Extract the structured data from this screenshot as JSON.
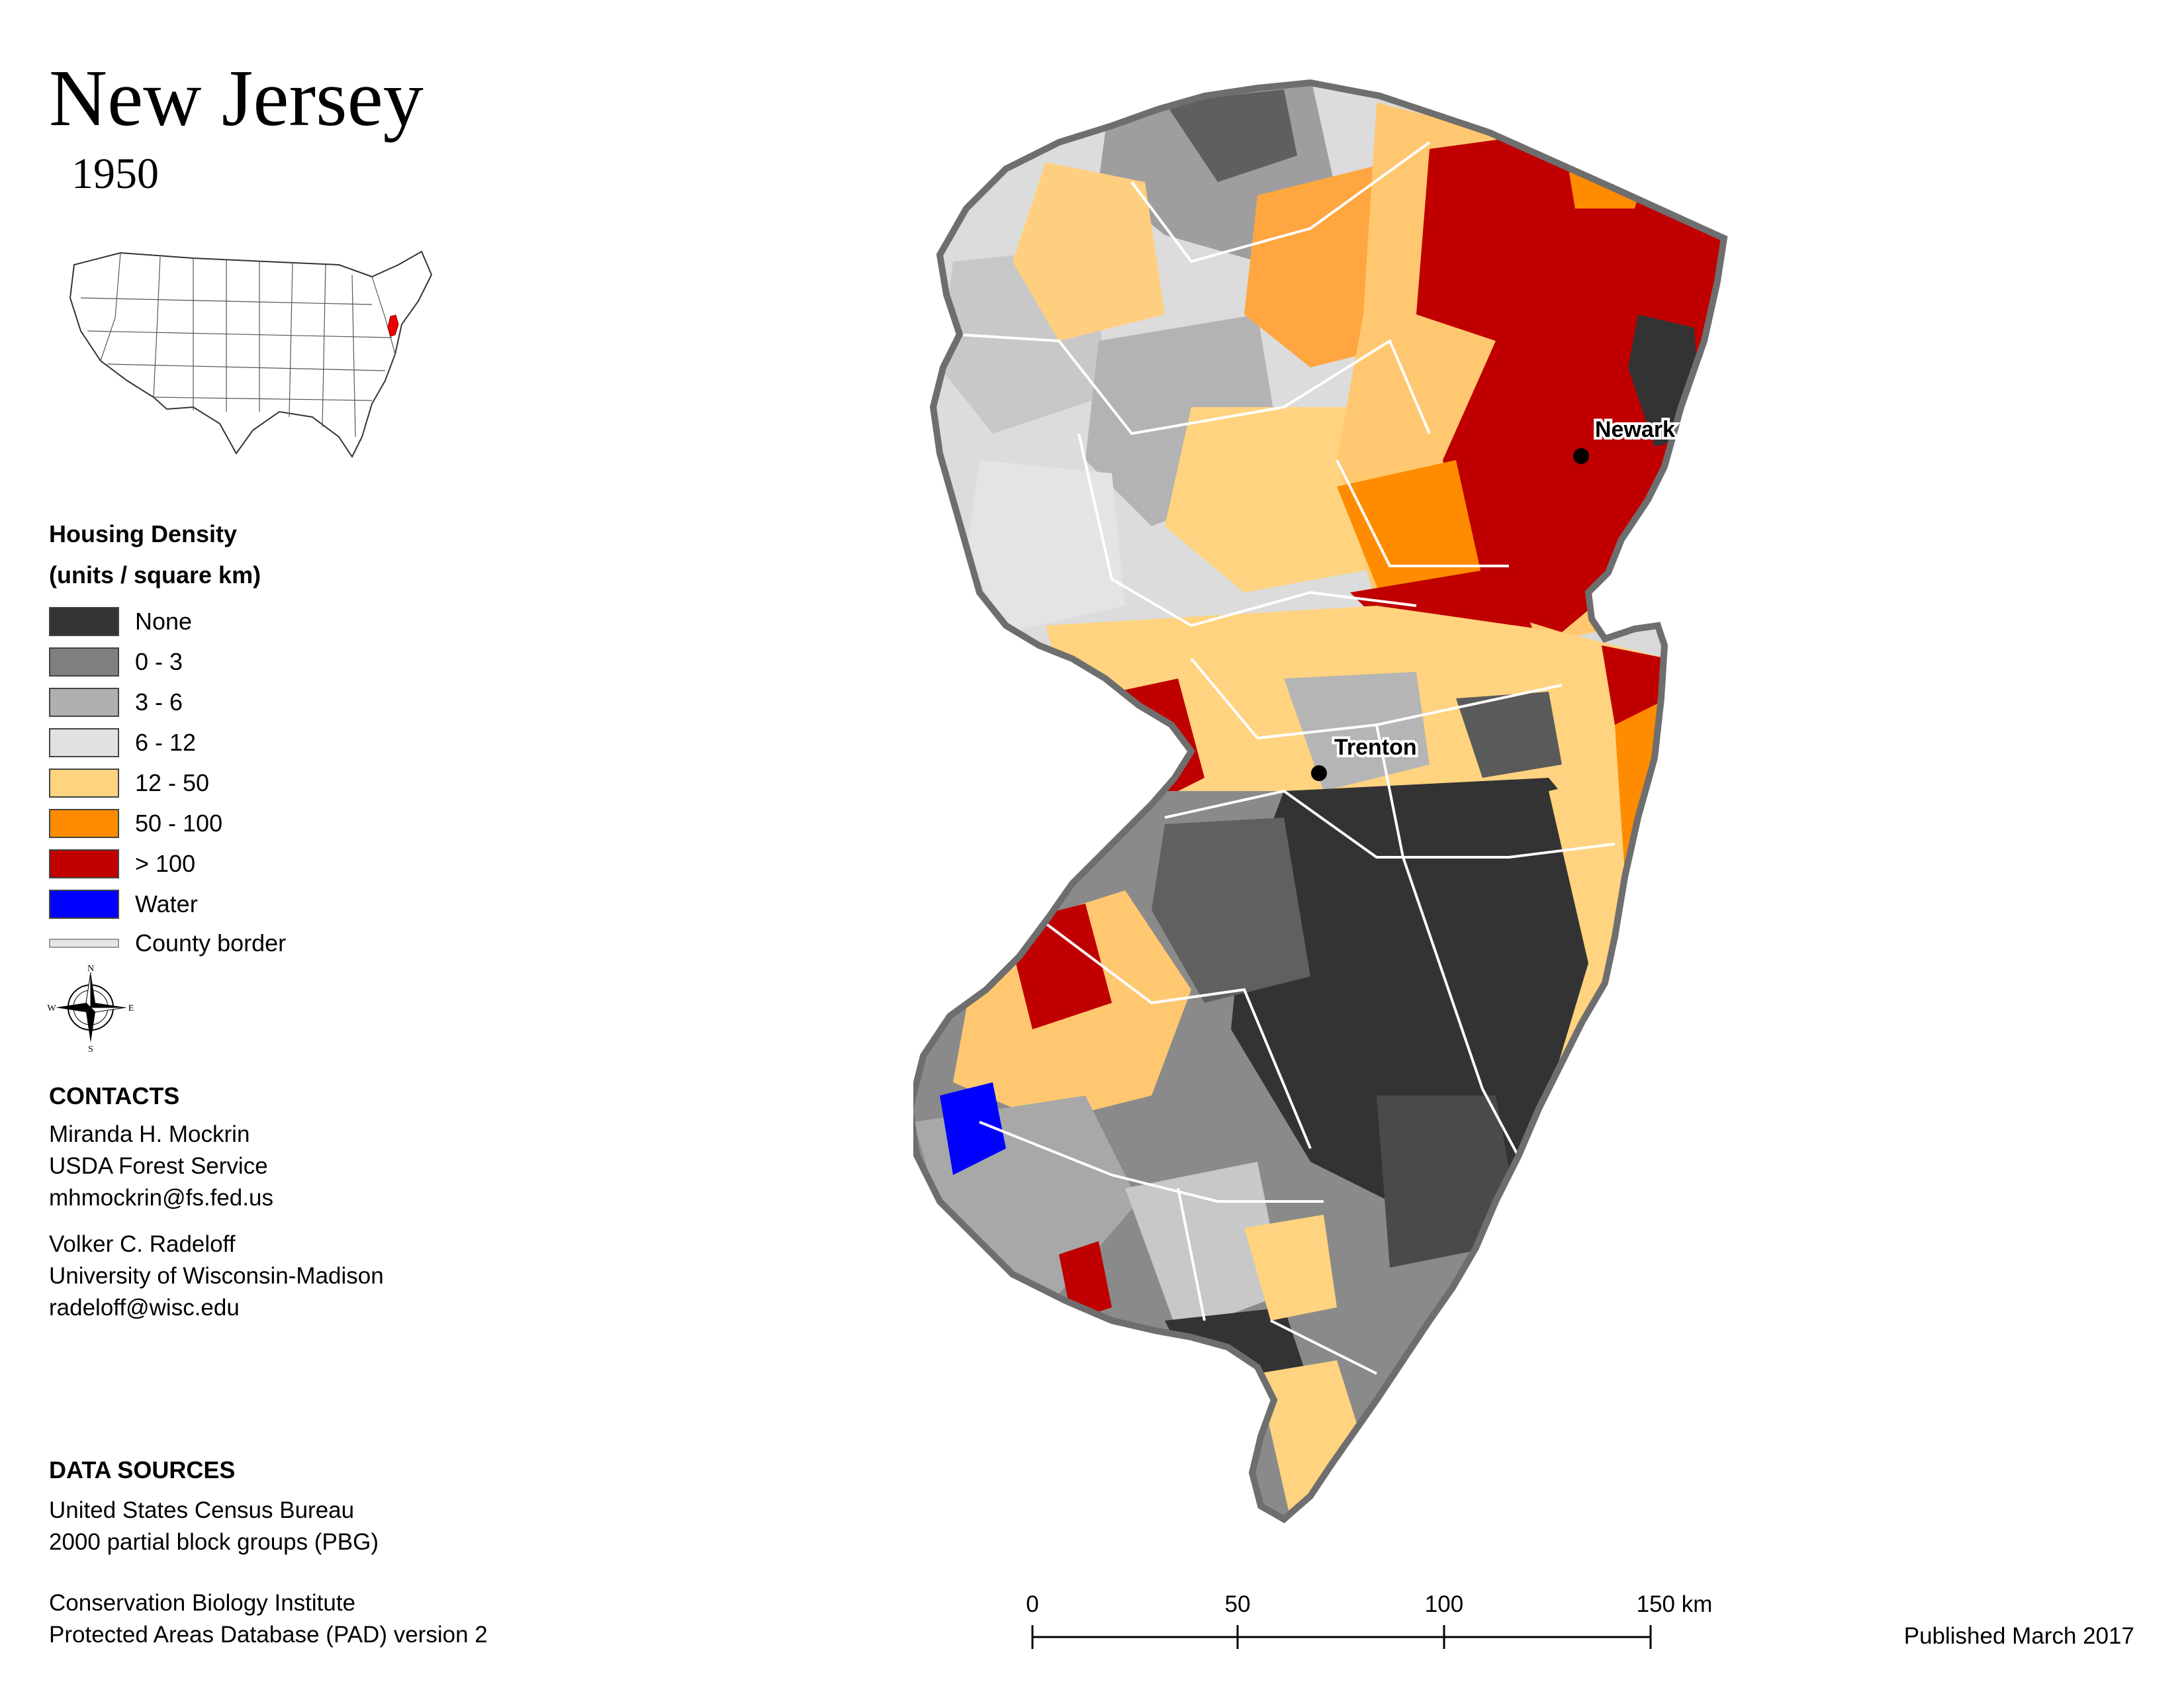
{
  "header": {
    "title": "New Jersey",
    "year": "1950"
  },
  "legend": {
    "title_line1": "Housing Density",
    "title_line2": "(units / square km)",
    "items": [
      {
        "label": "None",
        "color": "#333333"
      },
      {
        "label": "0 - 3",
        "color": "#7f7f7f"
      },
      {
        "label": "3 - 6",
        "color": "#b0b0b0"
      },
      {
        "label": "6 - 12",
        "color": "#e1e1e1"
      },
      {
        "label": "12 - 50",
        "color": "#ffd37f"
      },
      {
        "label": "50 - 100",
        "color": "#ff8c00"
      },
      {
        "label": "> 100",
        "color": "#c00000"
      },
      {
        "label": "Water",
        "color": "#0000ff"
      }
    ],
    "county_border_label": "County border"
  },
  "compass": {
    "n": "N",
    "s": "S",
    "e": "E",
    "w": "W"
  },
  "contacts": {
    "heading": "CONTACTS",
    "person1": [
      "Miranda H. Mockrin",
      "USDA Forest Service",
      "mhmockrin@fs.fed.us"
    ],
    "person2": [
      "Volker C. Radeloff",
      "University of Wisconsin-Madison",
      "radeloff@wisc.edu"
    ]
  },
  "data_sources": {
    "heading": "DATA SOURCES",
    "source1": [
      "United States Census Bureau",
      "2000 partial block groups (PBG)"
    ],
    "source2": [
      "Conservation Biology Institute",
      "Protected Areas Database (PAD) version 2"
    ]
  },
  "cities": {
    "newark": "Newark",
    "trenton": "Trenton"
  },
  "scale": {
    "ticks": [
      "0",
      "50",
      "100",
      "150 km"
    ]
  },
  "footer": {
    "published": "Published March 2017"
  }
}
